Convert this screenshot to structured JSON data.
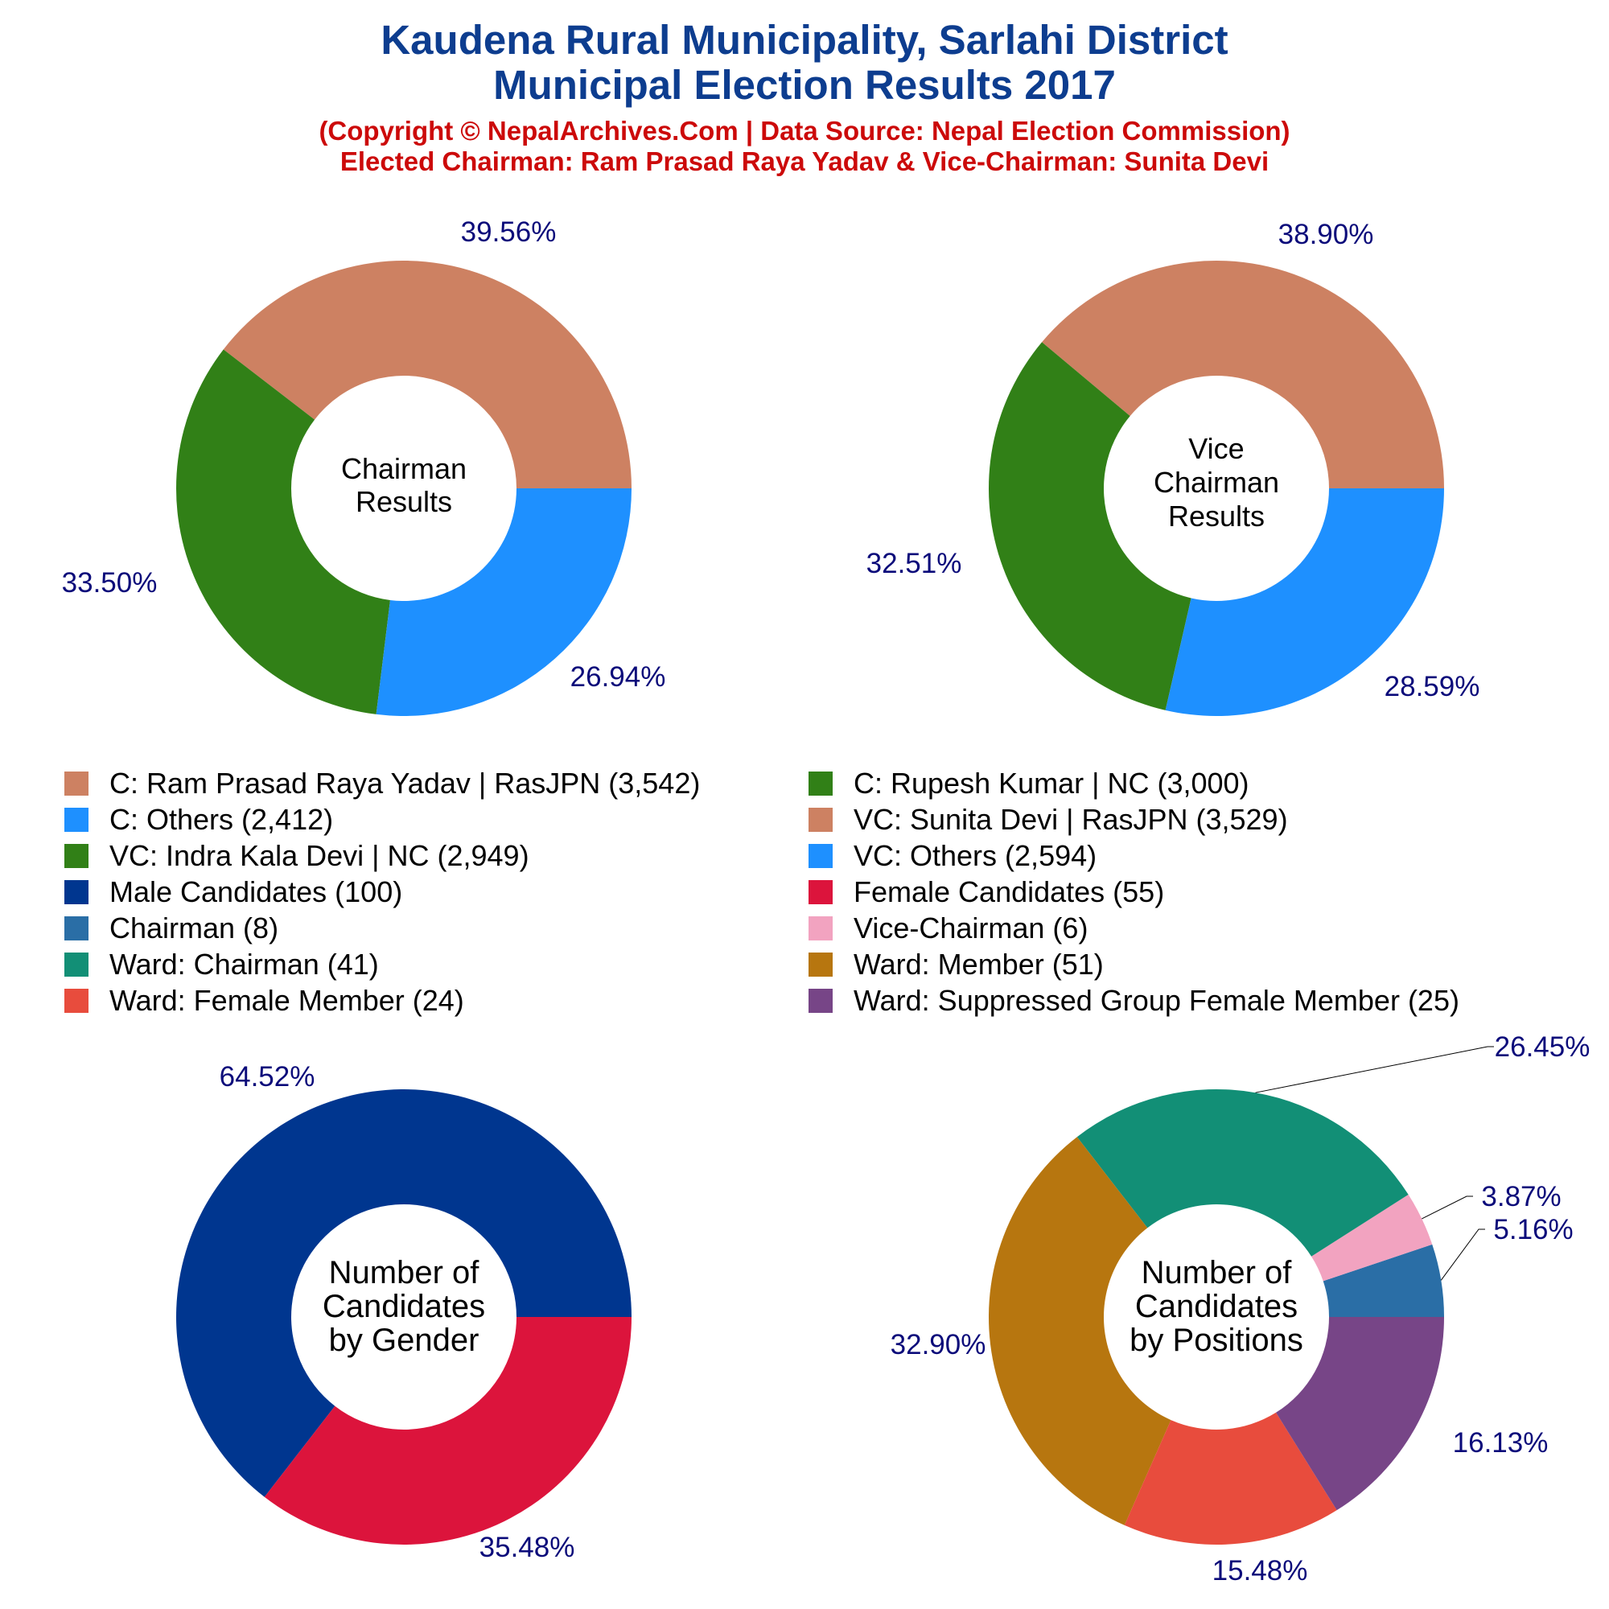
{
  "header": {
    "title_line1": "Kaudena Rural Municipality, Sarlahi District",
    "title_line2": "Municipal Election Results 2017",
    "subtitle_line1": "(Copyright © NepalArchives.Com | Data Source: Nepal Election Commission)",
    "subtitle_line2": "Elected Chairman: Ram Prasad Raya Yadav & Vice-Chairman: Sunita Devi"
  },
  "legend": [
    {
      "label": "C: Ram Prasad Raya Yadav | RasJPN (3,542)",
      "color": "#cd8162"
    },
    {
      "label": "C: Rupesh Kumar | NC (3,000)",
      "color": "#318017"
    },
    {
      "label": "C: Others (2,412)",
      "color": "#1e90ff"
    },
    {
      "label": "VC: Sunita Devi | RasJPN (3,529)",
      "color": "#cd8162"
    },
    {
      "label": "VC: Indra Kala Devi | NC (2,949)",
      "color": "#318017"
    },
    {
      "label": "VC: Others (2,594)",
      "color": "#1e90ff"
    },
    {
      "label": "Male Candidates (100)",
      "color": "#00368f"
    },
    {
      "label": "Female Candidates (55)",
      "color": "#dc143c"
    },
    {
      "label": "Chairman (8)",
      "color": "#2a6ea6"
    },
    {
      "label": "Vice-Chairman (6)",
      "color": "#f2a3c0"
    },
    {
      "label": "Ward: Chairman (41)",
      "color": "#128f76"
    },
    {
      "label": "Ward: Member (51)",
      "color": "#b7760f"
    },
    {
      "label": "Ward: Female Member (24)",
      "color": "#e84c3d"
    },
    {
      "label": "Ward: Suppressed Group Female Member (25)",
      "color": "#774587"
    }
  ],
  "chart_data": [
    {
      "type": "pie",
      "center_label": [
        "Chairman",
        "Results"
      ],
      "slices": [
        {
          "name": "C: Ram Prasad Raya Yadav | RasJPN",
          "value": 3542,
          "percent_label": "39.56%",
          "color": "#cd8162"
        },
        {
          "name": "C: Rupesh Kumar | NC",
          "value": 3000,
          "percent_label": "33.50%",
          "color": "#318017"
        },
        {
          "name": "C: Others",
          "value": 2412,
          "percent_label": "26.94%",
          "color": "#1e90ff"
        }
      ]
    },
    {
      "type": "pie",
      "center_label": [
        "Vice",
        "Chairman",
        "Results"
      ],
      "slices": [
        {
          "name": "VC: Sunita Devi | RasJPN",
          "value": 3529,
          "percent_label": "38.90%",
          "color": "#cd8162"
        },
        {
          "name": "VC: Indra Kala Devi | NC",
          "value": 2949,
          "percent_label": "32.51%",
          "color": "#318017"
        },
        {
          "name": "VC: Others",
          "value": 2594,
          "percent_label": "28.59%",
          "color": "#1e90ff"
        }
      ]
    },
    {
      "type": "pie",
      "center_label": [
        "Number of",
        "Candidates",
        "by Gender"
      ],
      "slices": [
        {
          "name": "Male Candidates",
          "value": 100,
          "percent_label": "64.52%",
          "color": "#00368f"
        },
        {
          "name": "Female Candidates",
          "value": 55,
          "percent_label": "35.48%",
          "color": "#dc143c"
        }
      ]
    },
    {
      "type": "pie",
      "center_label": [
        "Number of",
        "Candidates",
        "by Positions"
      ],
      "slices": [
        {
          "name": "Chairman",
          "value": 8,
          "percent_label": "5.16%",
          "color": "#2a6ea6"
        },
        {
          "name": "Vice-Chairman",
          "value": 6,
          "percent_label": "3.87%",
          "color": "#f2a3c0"
        },
        {
          "name": "Ward: Chairman",
          "value": 41,
          "percent_label": "26.45%",
          "color": "#128f76"
        },
        {
          "name": "Ward: Member",
          "value": 51,
          "percent_label": "32.90%",
          "color": "#b7760f"
        },
        {
          "name": "Ward: Female Member",
          "value": 24,
          "percent_label": "15.48%",
          "color": "#e84c3d"
        },
        {
          "name": "Ward: Suppressed Group Female Member",
          "value": 25,
          "percent_label": "16.13%",
          "color": "#774587"
        }
      ]
    }
  ]
}
